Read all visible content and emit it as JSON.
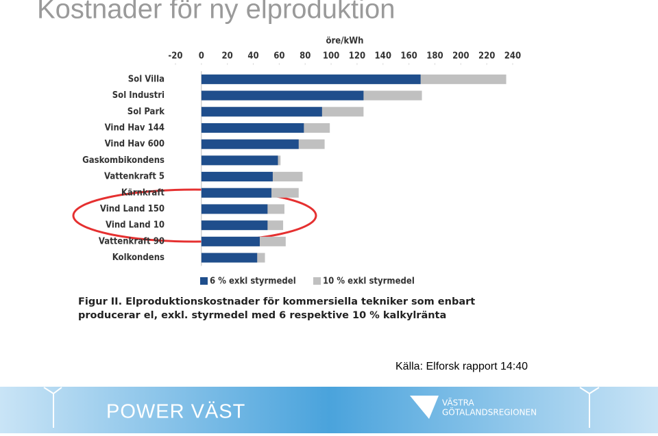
{
  "slide_title": "Kostnader för ny elproduktion",
  "chart_data": {
    "type": "bar",
    "orientation": "horizontal",
    "overlap": true,
    "axis_label": "öre/kWh",
    "categories": [
      "Sol Villa",
      "Sol Industri",
      "Sol Park",
      "Vind Hav 144",
      "Vind Hav 600",
      "Gaskombikondens",
      "Vattenkraft 5",
      "Kärnkraft",
      "Vind Land 150",
      "Vind Land 10",
      "Vattenkraft 90",
      "Kolkondens"
    ],
    "series": [
      {
        "name": "10 % exkl styrmedel",
        "color": "#c0c0c0",
        "values": [
          235,
          170,
          125,
          99,
          95,
          61,
          78,
          75,
          64,
          63,
          65,
          49
        ]
      },
      {
        "name": "6 % exkl styrmedel",
        "color": "#1f4e8c",
        "values": [
          169,
          125,
          93,
          79,
          75,
          59,
          55,
          54,
          51,
          51,
          45,
          43
        ]
      }
    ],
    "xlim": [
      -20,
      240
    ],
    "xticks": [
      -20,
      0,
      20,
      40,
      60,
      80,
      100,
      120,
      140,
      160,
      180,
      200,
      220,
      240
    ],
    "caption": [
      "Figur II. Elproduktionskostnader för kommersiella tekniker som enbart",
      "producerar el, exkl. styrmedel med 6 respektive 10 % kalkylränta"
    ]
  },
  "source": "Källa: Elforsk rapport 14:40",
  "footer": {
    "brand": "POWER VÄST",
    "region": [
      "VÄSTRA",
      "GÖTALANDSREGIONEN"
    ]
  }
}
